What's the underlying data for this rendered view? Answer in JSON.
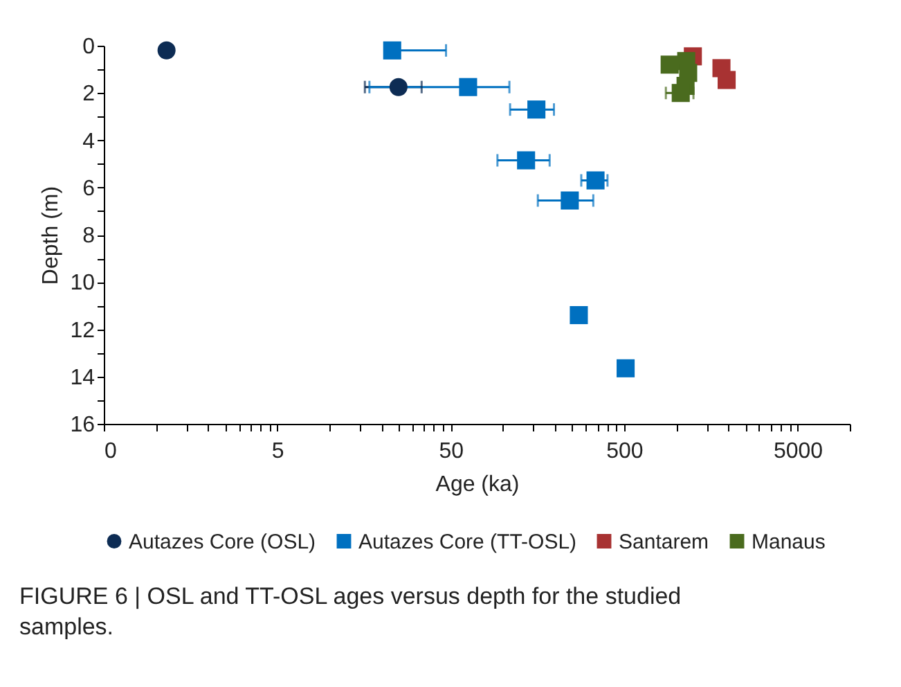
{
  "chart_data": {
    "type": "scatter",
    "xlabel": "Age (ka)",
    "ylabel": "Depth (m)",
    "annotations": [
      "FIGURE 6 | OSL and TT-OSL ages versus depth for the studied samples."
    ],
    "log": "x",
    "grid": false,
    "legend": "bottom",
    "xlim": [
      0.5,
      10000
    ],
    "ylim": [
      16,
      0
    ],
    "xticks": [
      {
        "value": 0.5,
        "label": "0"
      },
      {
        "value": 1,
        "label": null
      },
      {
        "value": 1.5,
        "label": null
      },
      {
        "value": 2,
        "label": null
      },
      {
        "value": 2.5,
        "label": null
      },
      {
        "value": 3,
        "label": null
      },
      {
        "value": 3.5,
        "label": null
      },
      {
        "value": 4,
        "label": null
      },
      {
        "value": 4.5,
        "label": null
      },
      5,
      {
        "value": 10,
        "label": null
      },
      {
        "value": 15,
        "label": null
      },
      {
        "value": 20,
        "label": null
      },
      {
        "value": 25,
        "label": null
      },
      {
        "value": 30,
        "label": null
      },
      {
        "value": 35,
        "label": null
      },
      {
        "value": 40,
        "label": null
      },
      {
        "value": 45,
        "label": null
      },
      50,
      {
        "value": 100,
        "label": null
      },
      {
        "value": 150,
        "label": null
      },
      {
        "value": 200,
        "label": null
      },
      {
        "value": 250,
        "label": null
      },
      {
        "value": 300,
        "label": null
      },
      {
        "value": 350,
        "label": null
      },
      {
        "value": 400,
        "label": null
      },
      {
        "value": 450,
        "label": null
      },
      500,
      {
        "value": 1000,
        "label": null
      },
      {
        "value": 1500,
        "label": null
      },
      {
        "value": 2000,
        "label": null
      },
      {
        "value": 2500,
        "label": null
      },
      {
        "value": 3000,
        "label": null
      },
      {
        "value": 3500,
        "label": null
      },
      {
        "value": 4000,
        "label": null
      },
      {
        "value": 4500,
        "label": null
      },
      5000,
      {
        "value": 10000,
        "label": null
      }
    ],
    "yticks": [
      0,
      {
        "value": 1,
        "label": null
      },
      2,
      {
        "value": 3,
        "label": null
      },
      4,
      {
        "value": 5,
        "label": null
      },
      6,
      {
        "value": 7,
        "label": null
      },
      8,
      {
        "value": 9,
        "label": null
      },
      10,
      {
        "value": 11,
        "label": null
      },
      12,
      {
        "value": 13,
        "label": null
      },
      14,
      {
        "value": 15,
        "label": null
      },
      16
    ],
    "series": [
      {
        "name": "Autazes Core (OSL)",
        "color": "#0d2c54",
        "marker": "circle",
        "x": [
          1.15,
          25
        ],
        "values": [
          0.2,
          1.75
        ],
        "xerrors": [
          null,
          9
        ]
      },
      {
        "name": "Autazes Core (TT-OSL)",
        "color": "#0070c0",
        "marker": "square",
        "x": [
          23,
          63,
          156,
          136,
          342,
          243,
          274,
          510
        ],
        "values": [
          0.2,
          1.75,
          2.7,
          4.85,
          5.7,
          6.55,
          11.4,
          13.65
        ],
        "xerrors": [
          [
            23,
            47
          ],
          46,
          [
            110,
            197
          ],
          [
            93,
            186
          ],
          59,
          [
            159,
            332
          ],
          null,
          null
        ]
      },
      {
        "name": "Santarem",
        "color": "#a83232",
        "marker": "square",
        "x": [
          1245,
          1820,
          1950
        ],
        "values": [
          0.45,
          0.95,
          1.45
        ]
      },
      {
        "name": "Manaus",
        "color": "#4a6b1e",
        "marker": "square",
        "x": [
          915,
          1140,
          1170,
          1130,
          1060
        ],
        "values": [
          0.8,
          0.65,
          1.15,
          1.7,
          2.0
        ],
        "xerrors": [
          null,
          null,
          null,
          null,
          [
            870,
            1255
          ]
        ]
      }
    ]
  }
}
